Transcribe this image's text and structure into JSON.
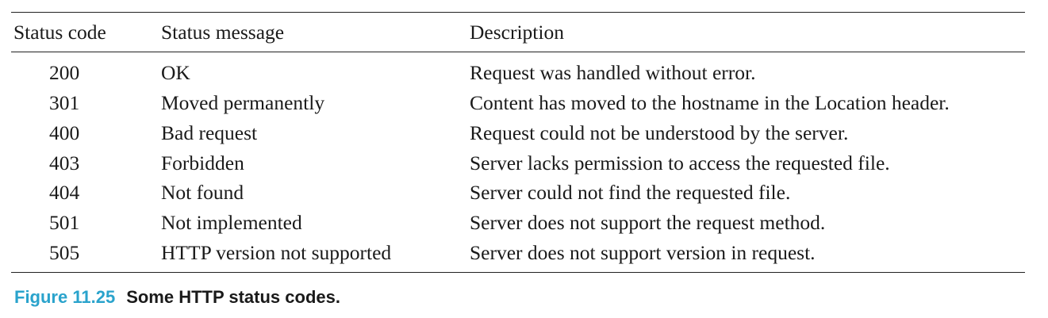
{
  "table": {
    "headers": [
      "Status code",
      "Status message",
      "Description"
    ],
    "rows": [
      {
        "code": "200",
        "message": "OK",
        "description": "Request was handled without error."
      },
      {
        "code": "301",
        "message": "Moved permanently",
        "description": "Content has moved to the hostname in the Location header."
      },
      {
        "code": "400",
        "message": "Bad request",
        "description": "Request could not be understood by the server."
      },
      {
        "code": "403",
        "message": "Forbidden",
        "description": "Server lacks permission to access the requested file."
      },
      {
        "code": "404",
        "message": "Not found",
        "description": "Server could not find the requested file."
      },
      {
        "code": "501",
        "message": "Not implemented",
        "description": "Server does not support the request method."
      },
      {
        "code": "505",
        "message": "HTTP version not supported",
        "description": "Server does not support version in request."
      }
    ]
  },
  "caption": {
    "label": "Figure 11.25",
    "text": "Some HTTP status codes."
  },
  "colors": {
    "caption_label": "#2aa3cc",
    "text": "#1a1a1a",
    "rule": "#222222"
  }
}
